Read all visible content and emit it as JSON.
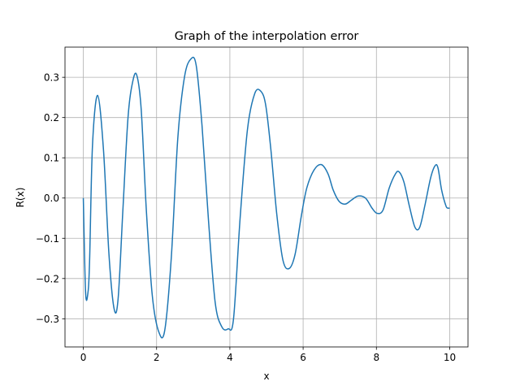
{
  "chart_data": {
    "type": "line",
    "title": "Graph of the interpolation error",
    "xlabel": "x",
    "ylabel": "R(x)",
    "xlim": [
      -0.5,
      10.5
    ],
    "ylim": [
      -0.37,
      0.375
    ],
    "xticks": [
      0,
      2,
      4,
      6,
      8,
      10
    ],
    "xtick_labels": [
      "0",
      "2",
      "4",
      "6",
      "8",
      "10"
    ],
    "yticks": [
      -0.3,
      -0.2,
      -0.1,
      0.0,
      0.1,
      0.2,
      0.3
    ],
    "ytick_labels": [
      "−0.3",
      "−0.2",
      "−0.1",
      "0.0",
      "0.1",
      "0.2",
      "0.3"
    ],
    "grid": true,
    "legend": false,
    "series": [
      {
        "color": "#1f77b4",
        "x": [
          0.0,
          0.06,
          0.12,
          0.17,
          0.25,
          0.39,
          0.55,
          0.7,
          0.84,
          0.95,
          1.08,
          1.22,
          1.35,
          1.46,
          1.58,
          1.72,
          1.88,
          2.05,
          2.22,
          2.4,
          2.58,
          2.76,
          2.93,
          3.08,
          3.24,
          3.42,
          3.6,
          3.78,
          3.95,
          4.1,
          4.28,
          4.48,
          4.68,
          4.85,
          4.98,
          5.12,
          5.28,
          5.45,
          5.62,
          5.78,
          5.95,
          6.1,
          6.3,
          6.5,
          6.68,
          6.82,
          6.98,
          7.15,
          7.32,
          7.5,
          7.7,
          7.88,
          8.02,
          8.18,
          8.35,
          8.52,
          8.62,
          8.75,
          8.9,
          9.05,
          9.18,
          9.32,
          9.48,
          9.6,
          9.68,
          9.78,
          9.9,
          9.96,
          10.0
        ],
        "y": [
          0.0,
          -0.23,
          -0.24,
          -0.16,
          0.13,
          0.255,
          0.12,
          -0.14,
          -0.275,
          -0.25,
          -0.03,
          0.2,
          0.29,
          0.305,
          0.22,
          -0.03,
          -0.24,
          -0.33,
          -0.33,
          -0.15,
          0.15,
          0.3,
          0.345,
          0.33,
          0.18,
          -0.06,
          -0.26,
          -0.32,
          -0.325,
          -0.3,
          -0.05,
          0.17,
          0.26,
          0.265,
          0.23,
          0.12,
          -0.04,
          -0.155,
          -0.175,
          -0.14,
          -0.045,
          0.025,
          0.07,
          0.083,
          0.06,
          0.02,
          -0.008,
          -0.015,
          -0.005,
          0.005,
          0.0,
          -0.025,
          -0.038,
          -0.03,
          0.025,
          0.06,
          0.065,
          0.04,
          -0.02,
          -0.072,
          -0.073,
          -0.02,
          0.05,
          0.08,
          0.075,
          0.02,
          -0.02,
          -0.025,
          -0.025
        ]
      }
    ]
  }
}
